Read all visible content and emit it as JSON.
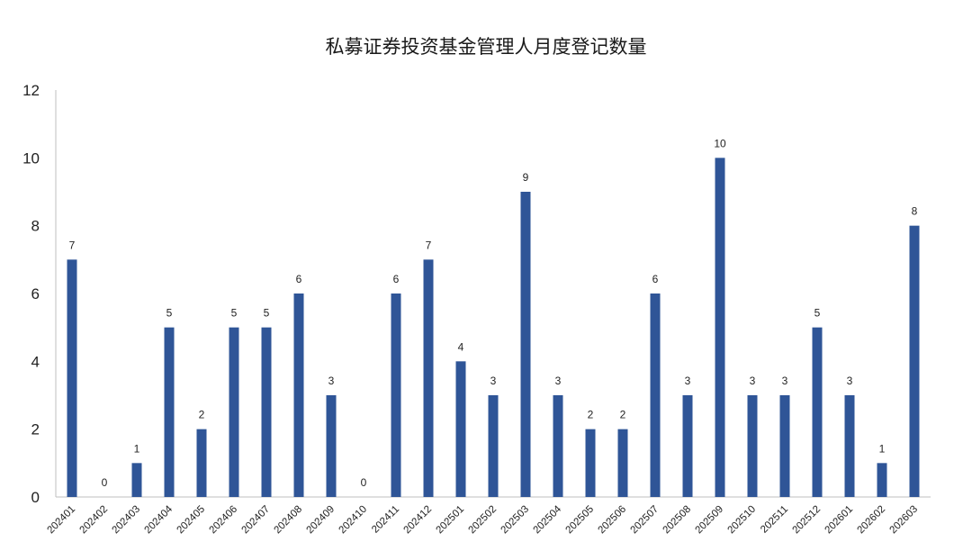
{
  "chart_data": {
    "type": "bar",
    "title": "私募证券投资基金管理人月度登记数量",
    "xlabel": "",
    "ylabel": "",
    "ylim": [
      0,
      12
    ],
    "yticks": [
      0,
      2,
      4,
      6,
      8,
      10,
      12
    ],
    "grid": false,
    "bar_color": "#2F5597",
    "categories": [
      "202401",
      "202402",
      "202403",
      "202404",
      "202405",
      "202406",
      "202407",
      "202408",
      "202409",
      "202410",
      "202411",
      "202412",
      "202501",
      "202502",
      "202503",
      "202504",
      "202505",
      "202506",
      "202507",
      "202508",
      "202509",
      "202510",
      "202511",
      "202512",
      "202601",
      "202602",
      "202603"
    ],
    "values": [
      7,
      0,
      1,
      5,
      2,
      5,
      5,
      6,
      3,
      0,
      6,
      7,
      4,
      3,
      9,
      3,
      2,
      2,
      6,
      3,
      10,
      3,
      3,
      5,
      3,
      1,
      8
    ]
  }
}
